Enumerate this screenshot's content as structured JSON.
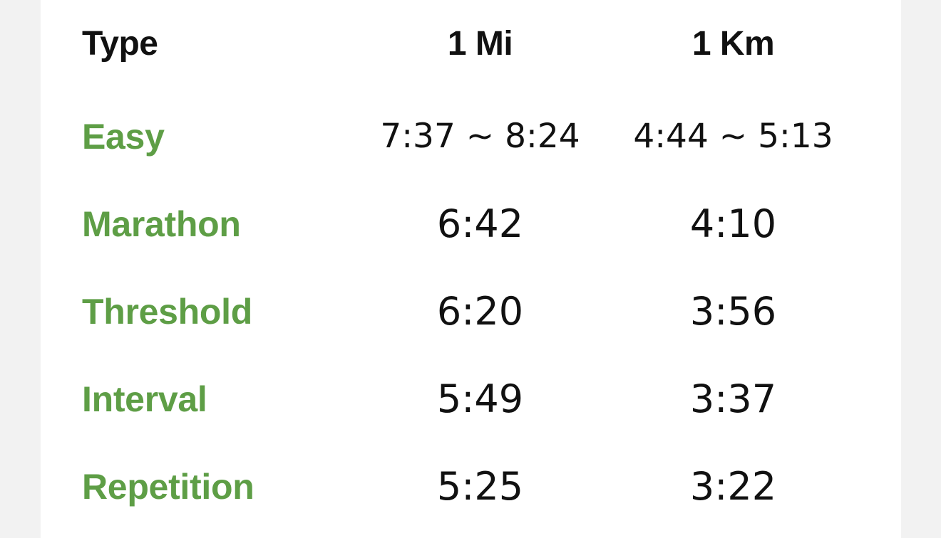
{
  "table": {
    "headers": {
      "type": "Type",
      "mi": "1 Mi",
      "km": "1 Km"
    },
    "rows": [
      {
        "type": "Easy",
        "mi": "7:37 ~ 8:24",
        "km": "4:44 ~ 5:13"
      },
      {
        "type": "Marathon",
        "mi": "6:42",
        "km": "4:10"
      },
      {
        "type": "Threshold",
        "mi": "6:20",
        "km": "3:56"
      },
      {
        "type": "Interval",
        "mi": "5:49",
        "km": "3:37"
      },
      {
        "type": "Repetition",
        "mi": "5:25",
        "km": "3:22"
      }
    ]
  },
  "colors": {
    "accent_green": "#5e9e46",
    "text_dark": "#111111",
    "card_background": "#ffffff",
    "page_background": "#f2f2f2"
  }
}
